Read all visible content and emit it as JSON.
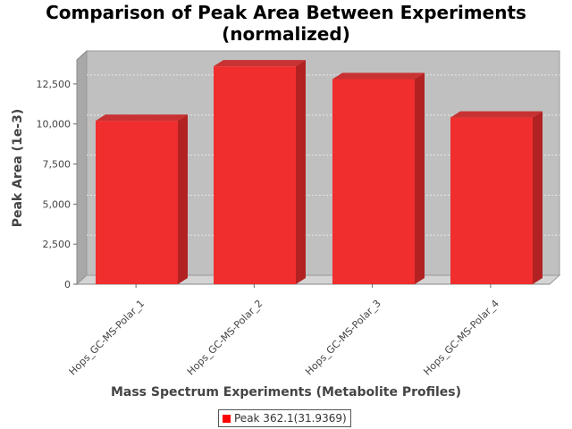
{
  "chart_data": {
    "type": "bar",
    "title": [
      "Comparison of Peak Area Between Experiments",
      "(normalized)"
    ],
    "xlabel": "Mass Spectrum Experiments (Metabolite Profiles)",
    "ylabel": "Peak Area (1e-3)",
    "categories": [
      "Hops_GC-MS-Polar_1",
      "Hops_GC-MS-Polar_2",
      "Hops_GC-MS-Polar_3",
      "Hops_GC-MS-Polar_4"
    ],
    "series": [
      {
        "name": "Peak 362.1(31.9369)",
        "values": [
          10200,
          13600,
          12800,
          10400
        ]
      }
    ],
    "ylim": [
      0,
      14000
    ],
    "yticks": [
      0,
      2500,
      5000,
      7500,
      10000,
      12500
    ],
    "ytick_labels": [
      "0",
      "2,500",
      "5,000",
      "7,500",
      "10,000",
      "12,500"
    ],
    "grid": true,
    "legend_position": "bottom",
    "colors": {
      "bar": "#ff0000",
      "bar_side": "#b22222",
      "plot_bg": "#c0c0c0",
      "grid": "#e8e8e8"
    }
  }
}
